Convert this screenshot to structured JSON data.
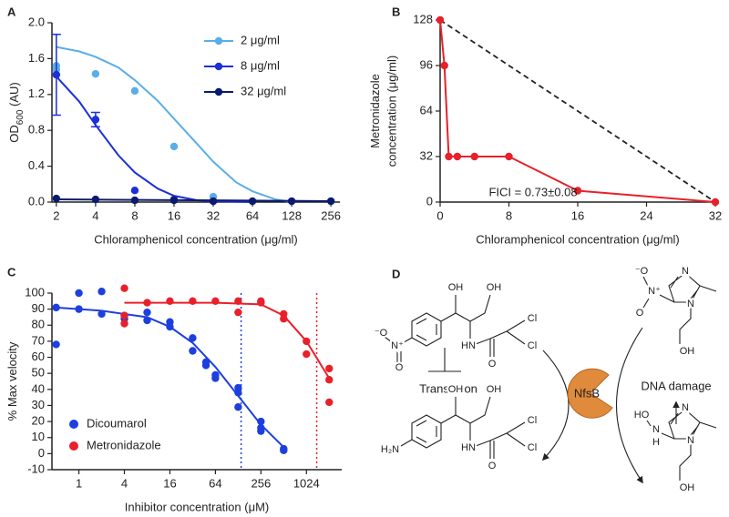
{
  "chart_data": [
    {
      "type": "scatter",
      "panel": "A",
      "xscale": "log2",
      "x_label": "Chloramphenicol concentration (μg/ml)",
      "y_label": "OD",
      "y_label_sub": "600",
      "y_label_suffix": " (AU)",
      "xlim": [
        1.85,
        300
      ],
      "ylim": [
        0,
        2.0
      ],
      "xticks": [
        2,
        4,
        8,
        16,
        32,
        64,
        128,
        256
      ],
      "yticks": [
        {
          "value": 0,
          "label": "0.0"
        },
        0.4,
        0.8,
        1.2,
        1.6,
        {
          "value": 2.0,
          "label": "2.0"
        }
      ],
      "legend": "upper right",
      "series": [
        {
          "name": "2 μg/ml",
          "color": "#5aaee8",
          "x": [
            2,
            2,
            4,
            8,
            16,
            32,
            64,
            128,
            256
          ],
          "values": [
            1.52,
            1.48,
            1.43,
            1.24,
            0.62,
            0.06,
            0.01,
            0.01,
            0.01
          ],
          "fit_x": [
            2,
            3,
            4,
            6,
            8,
            12,
            16,
            24,
            32,
            48,
            64,
            96,
            128
          ],
          "fit_values": [
            1.73,
            1.68,
            1.62,
            1.5,
            1.36,
            1.13,
            0.93,
            0.65,
            0.45,
            0.22,
            0.12,
            0.03,
            0.0
          ]
        },
        {
          "name": "8 μg/ml",
          "color": "#1c2fd8",
          "x": [
            2,
            4,
            8,
            16,
            32
          ],
          "values": [
            1.42,
            0.92,
            0.13,
            0.03,
            0.01
          ],
          "errors": [
            0.45,
            0.08,
            null,
            null,
            null
          ],
          "fit_x": [
            2,
            3,
            4,
            6,
            8,
            12,
            16,
            24,
            32,
            64
          ],
          "fit_values": [
            1.4,
            1.12,
            0.86,
            0.52,
            0.33,
            0.15,
            0.07,
            0.02,
            0.01,
            0.0
          ]
        },
        {
          "name": "32 μg/ml",
          "color": "#0b1a6e",
          "x": [
            2,
            4,
            8,
            16,
            32,
            64,
            128,
            256
          ],
          "values": [
            0.04,
            0.03,
            0.02,
            0.02,
            0.01,
            0.01,
            0.01,
            0.01
          ],
          "fit_x": [
            2,
            256
          ],
          "fit_values": [
            0.03,
            0.01
          ]
        }
      ]
    },
    {
      "type": "line",
      "panel": "B",
      "xscale": "linear",
      "x_label": "Chloramphenicol concentration (μg/ml)",
      "y_label": "Metronidazole",
      "y_label_2": "concentration (μg/ml)",
      "xlim": [
        0,
        32
      ],
      "ylim": [
        0,
        128
      ],
      "xticks": [
        0,
        8,
        16,
        24,
        32
      ],
      "yticks": [
        0,
        32,
        64,
        96,
        128
      ],
      "annotation": "FICI = 0.73±0.08",
      "reference_line": {
        "x": [
          0,
          32
        ],
        "values": [
          128,
          0
        ]
      },
      "series": [
        {
          "color": "#e8202a",
          "x": [
            0,
            0.5,
            1,
            2,
            4,
            8,
            16,
            32
          ],
          "values": [
            128,
            96,
            32,
            32,
            32,
            32,
            8,
            0
          ]
        }
      ]
    },
    {
      "type": "scatter",
      "panel": "C",
      "xscale": "log2",
      "x_label": "Inhibitor concentration (μM)",
      "y_label": "% Max velocity",
      "xlim": [
        0.44,
        3000
      ],
      "ylim": [
        -10,
        100
      ],
      "xticks": [
        1,
        4,
        16,
        64,
        256,
        1024
      ],
      "yticks": [
        -10,
        0,
        10,
        20,
        30,
        40,
        50,
        60,
        70,
        80,
        90,
        100
      ],
      "legend": "lower left",
      "markers": [
        {
          "x": 140,
          "color": "#1d3fe0"
        },
        {
          "x": 1400,
          "color": "#e8202a"
        }
      ],
      "series": [
        {
          "name": "Dicoumarol",
          "color": "#1d3fe0",
          "x": [
            0.5,
            0.5,
            1,
            1,
            2,
            2,
            4,
            4,
            8,
            8,
            16,
            16,
            32,
            32,
            48,
            48,
            64,
            64,
            128,
            128,
            128,
            256,
            256,
            256,
            512,
            512
          ],
          "values": [
            91,
            68,
            100,
            90,
            101,
            87,
            86,
            84,
            83,
            88,
            82,
            79,
            72,
            64,
            57,
            55,
            47,
            49,
            41,
            38,
            29,
            20,
            16,
            14,
            3,
            2
          ],
          "fit_x": [
            0.5,
            2,
            8,
            16,
            32,
            64,
            128,
            256,
            512
          ],
          "fit_values": [
            91,
            89,
            85,
            79,
            69,
            54,
            36,
            18,
            4
          ]
        },
        {
          "name": "Metronidazole",
          "color": "#e8202a",
          "x": [
            4,
            4,
            4,
            8,
            16,
            32,
            64,
            128,
            128,
            256,
            256,
            512,
            512,
            1024,
            1024,
            2048,
            2048,
            2048
          ],
          "values": [
            103,
            81,
            86,
            94,
            95,
            95,
            95,
            95,
            88,
            95,
            94,
            87,
            84,
            70,
            62,
            53,
            46,
            32
          ],
          "fit_x": [
            4,
            64,
            256,
            512,
            1024,
            2048
          ],
          "fit_values": [
            94,
            94,
            93,
            86,
            70,
            47
          ]
        }
      ]
    }
  ],
  "diagram": {
    "panel": "D",
    "enzyme": "NfsB",
    "translation": "Translation",
    "dna_damage": "DNA damage",
    "atoms": [
      {
        "text": "⁻O"
      },
      {
        "text": "N⁺"
      },
      {
        "text": "O"
      },
      {
        "text": "OH"
      },
      {
        "text": "OH"
      },
      {
        "text": "HN"
      },
      {
        "text": "Cl"
      },
      {
        "text": "Cl"
      },
      {
        "text": "O"
      },
      {
        "text": "H₂N",
        "color": "#8a2be2"
      },
      {
        "text": "OH"
      },
      {
        "text": "OH"
      },
      {
        "text": "HN"
      },
      {
        "text": "Cl"
      },
      {
        "text": "Cl"
      },
      {
        "text": "O"
      },
      {
        "text": "⁻O"
      },
      {
        "text": "N⁺"
      },
      {
        "text": "O"
      },
      {
        "text": "N"
      },
      {
        "text": "N"
      },
      {
        "text": "OH"
      },
      {
        "text": "HO",
        "color": "#e8202a"
      },
      {
        "text": "N",
        "color": "#e8202a"
      },
      {
        "text": "H",
        "color": "#e8202a"
      },
      {
        "text": "N"
      },
      {
        "text": "N"
      },
      {
        "text": "OH"
      }
    ]
  }
}
